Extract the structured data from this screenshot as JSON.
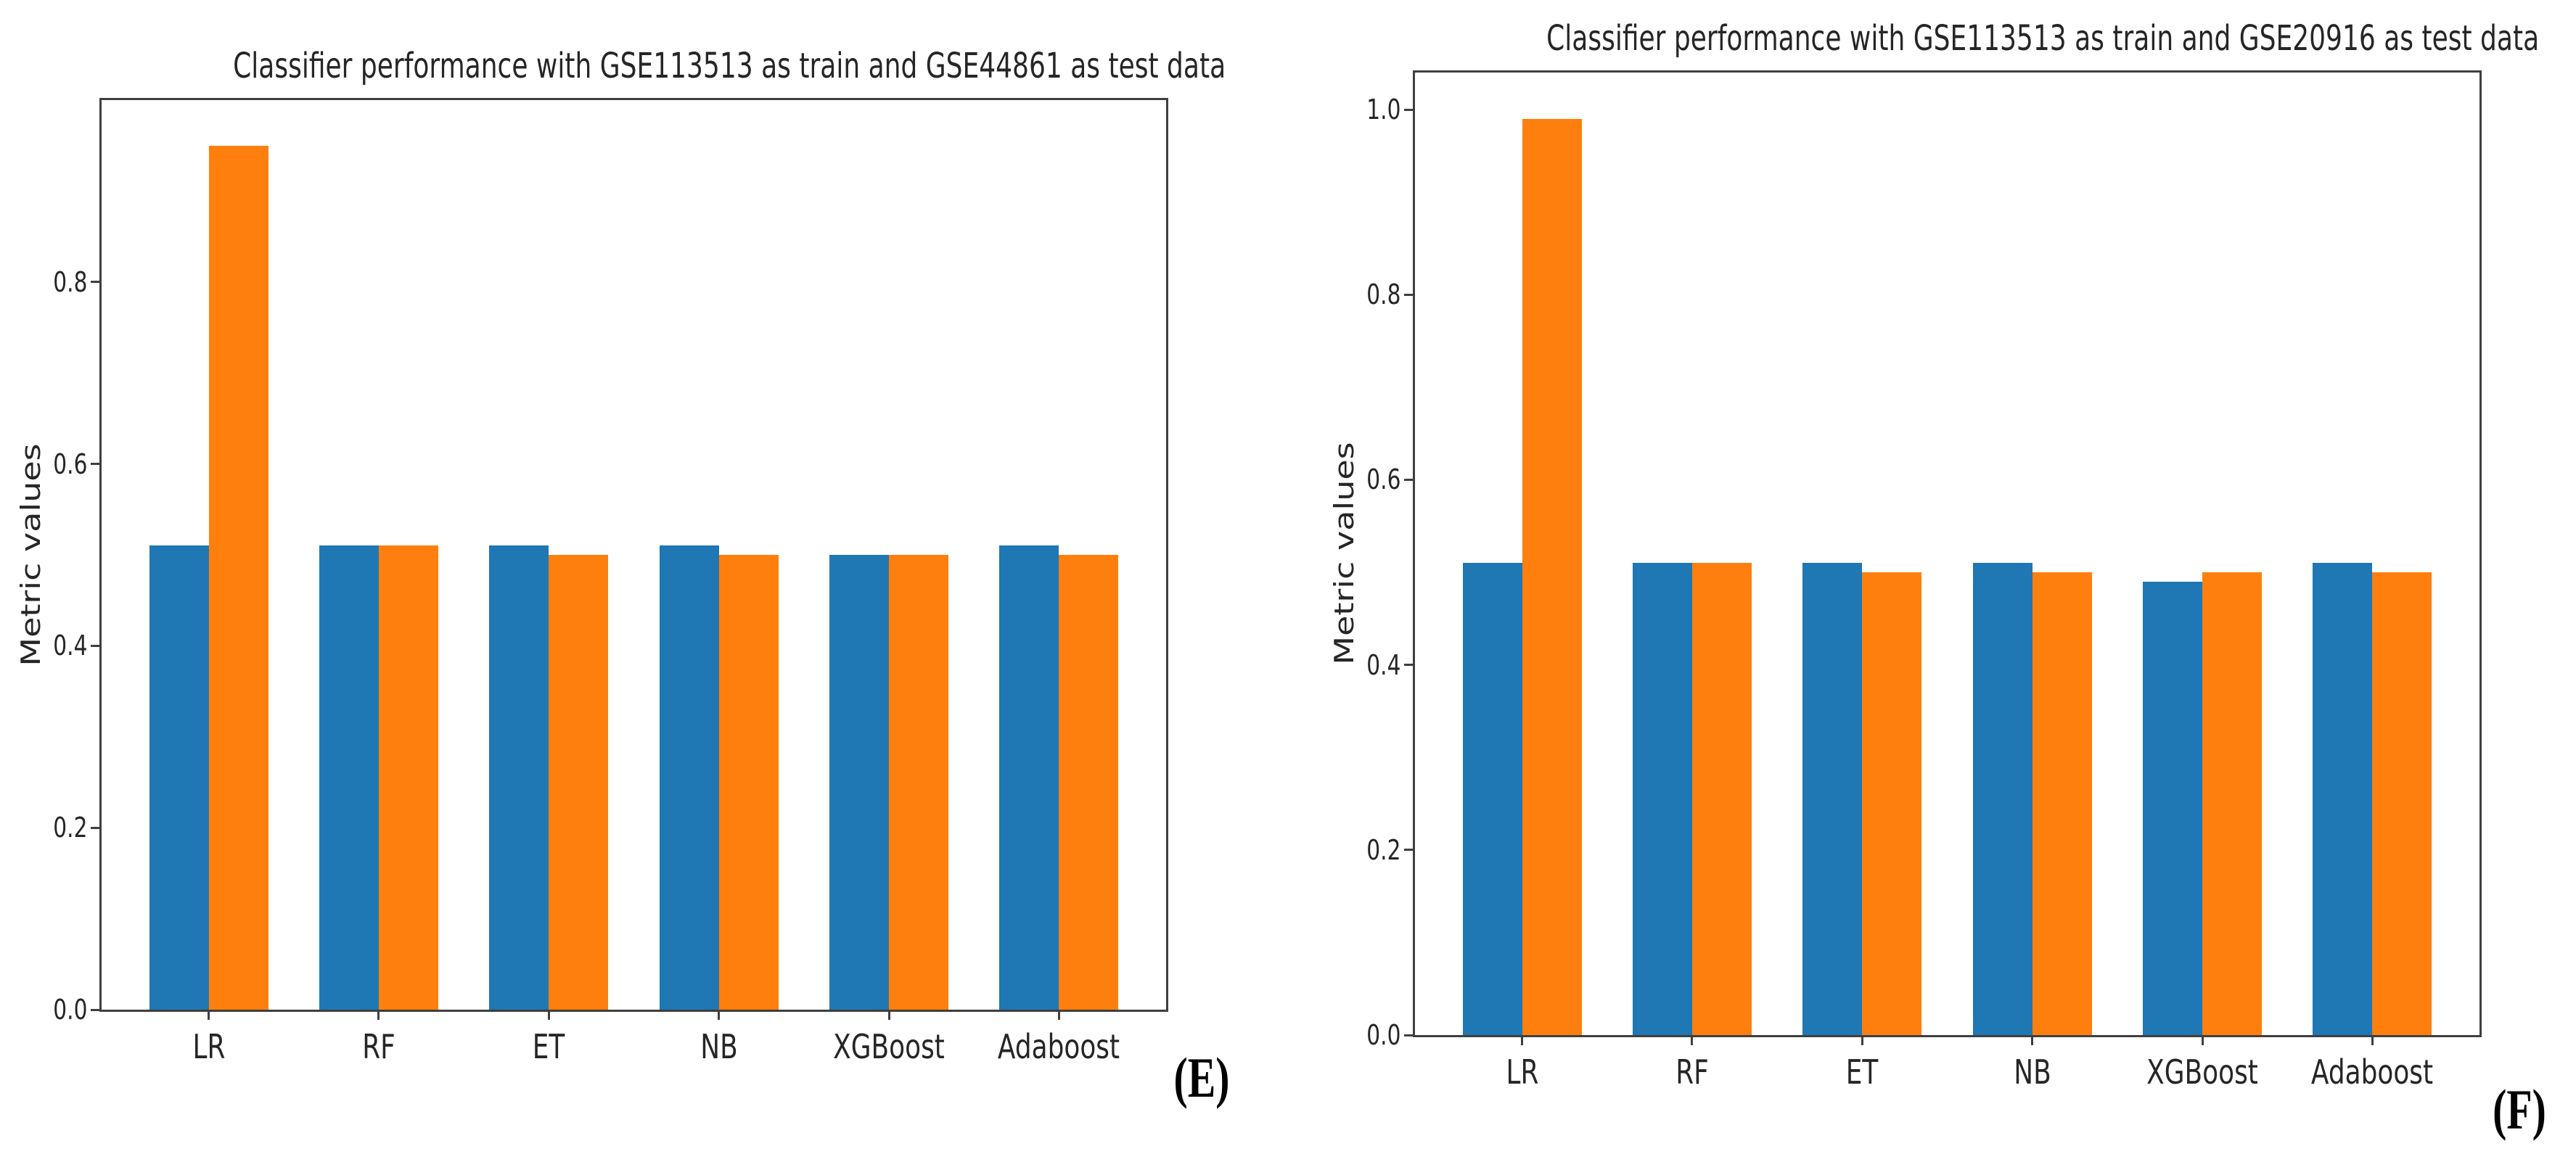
{
  "background": "#ffffff",
  "chart_data": [
    {
      "type": "bar",
      "panel_label": "(E)",
      "title": "Classifier performance with GSE113513 as train and GSE44861 as test data",
      "ylabel": "Metric values",
      "xlabel": "",
      "categories": [
        "LR",
        "RF",
        "ET",
        "NB",
        "XGBoost",
        "Adaboost"
      ],
      "series": [
        {
          "name": "blue",
          "color": "#1f77b4",
          "values": [
            0.51,
            0.51,
            0.51,
            0.51,
            0.5,
            0.51
          ]
        },
        {
          "name": "orange",
          "color": "#ff7f0e",
          "values": [
            0.95,
            0.51,
            0.5,
            0.5,
            0.5,
            0.5
          ]
        }
      ],
      "yticks": [
        0.0,
        0.2,
        0.4,
        0.6,
        0.8
      ],
      "ylim": [
        0.0,
        1.0
      ],
      "grid": false,
      "legend": "none"
    },
    {
      "type": "bar",
      "panel_label": "(F)",
      "title": "Classifier performance with GSE113513 as train and GSE20916 as test data",
      "ylabel": "Metric values",
      "xlabel": "",
      "categories": [
        "LR",
        "RF",
        "ET",
        "NB",
        "XGBoost",
        "Adaboost"
      ],
      "series": [
        {
          "name": "blue",
          "color": "#1f77b4",
          "values": [
            0.51,
            0.51,
            0.51,
            0.51,
            0.49,
            0.51
          ]
        },
        {
          "name": "orange",
          "color": "#ff7f0e",
          "values": [
            0.99,
            0.51,
            0.5,
            0.5,
            0.5,
            0.5
          ]
        }
      ],
      "yticks": [
        0.0,
        0.2,
        0.4,
        0.6,
        0.8,
        1.0
      ],
      "ylim": [
        0.0,
        1.04
      ],
      "grid": false,
      "legend": "none"
    }
  ]
}
